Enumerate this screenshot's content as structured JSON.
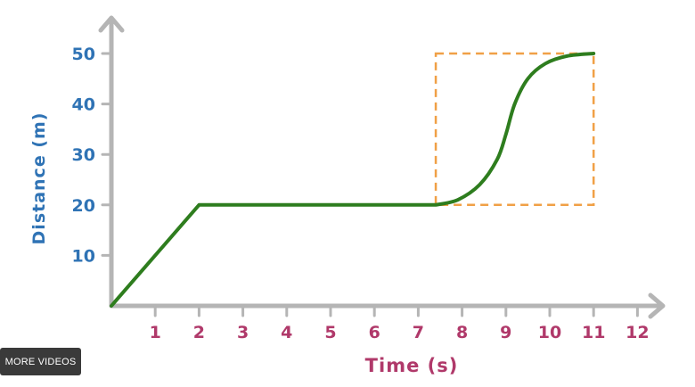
{
  "chart_data": {
    "type": "line",
    "xlabel": "Time (s)",
    "ylabel": "Distance (m)",
    "xlim": [
      0,
      12.6
    ],
    "ylim": [
      0,
      55
    ],
    "x_ticks": [
      1,
      2,
      3,
      4,
      5,
      6,
      7,
      8,
      9,
      10,
      11,
      12
    ],
    "x_tick_labels": [
      "1",
      "2",
      "3",
      "4",
      "5",
      "6",
      "7",
      "8",
      "9",
      "10",
      "11",
      "12"
    ],
    "y_ticks": [
      10,
      20,
      30,
      40,
      50
    ],
    "y_tick_labels": [
      "10",
      "20",
      "30",
      "40",
      "50"
    ],
    "series": [
      {
        "color": "#2e7d1e",
        "x": [
          0,
          2,
          7.4,
          7.9,
          8.4,
          8.8,
          9.0,
          9.2,
          9.5,
          9.9,
          10.4,
          11.0
        ],
        "y": [
          0,
          20,
          20,
          21,
          24,
          29,
          34,
          40,
          45,
          48,
          49.5,
          50
        ]
      }
    ],
    "annotations": [
      {
        "type": "dashed-box",
        "color": "#f0a046",
        "x_range": [
          7.4,
          11.0
        ],
        "y_range": [
          20,
          50
        ]
      }
    ],
    "grid": false,
    "legend": "none"
  },
  "overlay": {
    "more_videos_label": "MORE VIDEOS"
  }
}
